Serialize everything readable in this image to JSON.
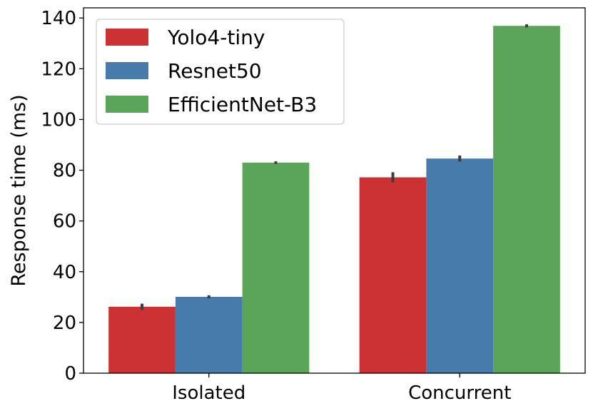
{
  "chart_data": {
    "type": "bar",
    "title": "",
    "xlabel": "",
    "ylabel": "Response time (ms)",
    "ylim": [
      0,
      144
    ],
    "yticks": [
      0,
      20,
      40,
      60,
      80,
      100,
      120,
      140
    ],
    "ytick_labels": [
      "0",
      "20",
      "40",
      "60",
      "80",
      "100",
      "120",
      "140"
    ],
    "categories": [
      "Isolated",
      "Concurrent"
    ],
    "grid": false,
    "legend_position": "top-left",
    "series": [
      {
        "name": "Yolo4-tiny",
        "color": "#cc3134",
        "values": [
          26.2,
          77.2
        ],
        "error": [
          1.2,
          2.0
        ]
      },
      {
        "name": "Resnet50",
        "color": "#467bab",
        "values": [
          30.1,
          84.6
        ],
        "error": [
          0.6,
          1.2
        ]
      },
      {
        "name": "EfficientNet-B3",
        "color": "#5ba55a",
        "values": [
          83.0,
          136.9
        ],
        "error": [
          0.5,
          0.6
        ]
      }
    ]
  }
}
